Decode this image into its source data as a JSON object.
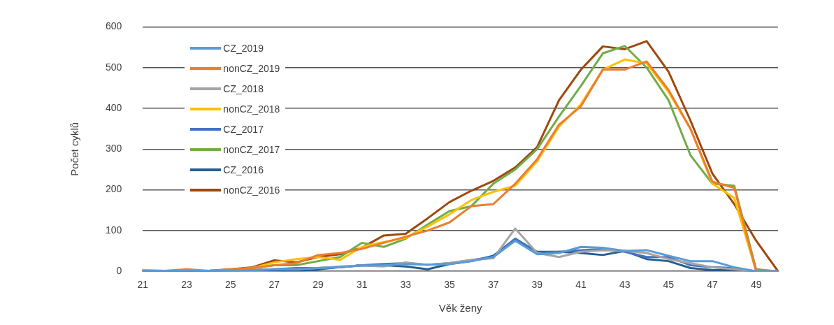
{
  "chart_data": {
    "type": "line",
    "xlabel": "Věk ženy",
    "ylabel": "Počet cyklů",
    "categories": [
      "21",
      null,
      "23",
      null,
      "25",
      null,
      "27",
      null,
      "29",
      null,
      "31",
      null,
      "33",
      null,
      "35",
      null,
      "37",
      null,
      "39",
      null,
      "41",
      null,
      "43",
      null,
      "45",
      null,
      "47",
      null,
      "49",
      null
    ],
    "ylim": [
      0,
      600
    ],
    "yticks": [
      0,
      100,
      200,
      300,
      400,
      500,
      600
    ],
    "grid": "y",
    "legend": "top left",
    "marker": "none",
    "line_style": "solid",
    "series": [
      {
        "name": "CZ_2019",
        "color": "#5b9bd5",
        "values": [
          1,
          1,
          1,
          1,
          2,
          3,
          5,
          5,
          8,
          10,
          14,
          15,
          18,
          16,
          18,
          25,
          35,
          75,
          42,
          45,
          60,
          58,
          50,
          52,
          38,
          25,
          25,
          10,
          0,
          0
        ]
      },
      {
        "name": "nonCZ_2019",
        "color": "#ed7d31",
        "values": [
          2,
          1,
          5,
          1,
          4,
          8,
          15,
          20,
          40,
          45,
          55,
          70,
          85,
          100,
          120,
          160,
          165,
          215,
          275,
          360,
          405,
          495,
          495,
          515,
          445,
          350,
          220,
          205,
          0,
          0
        ]
      },
      {
        "name": "CZ_2018",
        "color": "#a5a5a5",
        "values": [
          1,
          1,
          1,
          1,
          2,
          3,
          5,
          5,
          8,
          12,
          14,
          12,
          22,
          16,
          20,
          28,
          32,
          105,
          45,
          35,
          48,
          52,
          50,
          45,
          30,
          20,
          10,
          5,
          0,
          0
        ]
      },
      {
        "name": "nonCZ_2018",
        "color": "#ffc000",
        "values": [
          null,
          null,
          null,
          null,
          4,
          8,
          22,
          30,
          35,
          28,
          60,
          72,
          82,
          110,
          140,
          175,
          195,
          210,
          270,
          355,
          410,
          495,
          520,
          510,
          440,
          350,
          215,
          180,
          0,
          0
        ]
      },
      {
        "name": "CZ_2017",
        "color": "#4472c4",
        "values": [
          1,
          1,
          1,
          1,
          2,
          3,
          5,
          8,
          8,
          10,
          15,
          18,
          20,
          16,
          20,
          28,
          35,
          80,
          45,
          48,
          52,
          55,
          48,
          35,
          35,
          15,
          10,
          8,
          0,
          0
        ]
      },
      {
        "name": "nonCZ_2017",
        "color": "#70ad47",
        "values": [
          null,
          null,
          null,
          null,
          null,
          8,
          15,
          15,
          25,
          35,
          70,
          60,
          80,
          115,
          148,
          160,
          215,
          250,
          300,
          380,
          455,
          535,
          553,
          500,
          420,
          285,
          215,
          210,
          5,
          0
        ]
      },
      {
        "name": "CZ_2016",
        "color": "#255e91",
        "values": [
          1,
          1,
          1,
          1,
          2,
          3,
          2,
          0,
          5,
          10,
          15,
          15,
          12,
          5,
          18,
          25,
          38,
          80,
          48,
          48,
          45,
          40,
          50,
          30,
          25,
          8,
          3,
          5,
          0,
          0
        ]
      },
      {
        "name": "nonCZ_2016",
        "color": "#9e480e",
        "values": [
          2,
          1,
          2,
          1,
          5,
          10,
          27,
          22,
          35,
          42,
          58,
          88,
          92,
          130,
          170,
          198,
          222,
          255,
          305,
          420,
          495,
          552,
          545,
          565,
          490,
          370,
          240,
          165,
          75,
          0
        ]
      }
    ]
  }
}
